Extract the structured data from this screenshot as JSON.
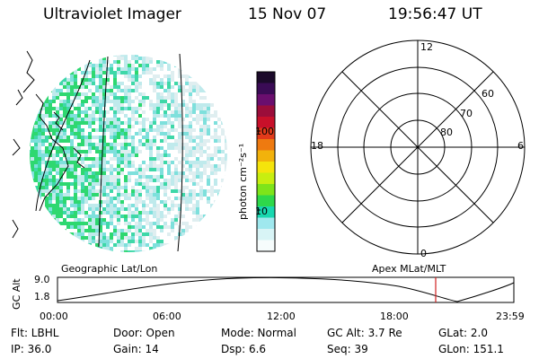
{
  "header": {
    "title": "Ultraviolet Imager",
    "date": "15 Nov 07",
    "time": "19:56:47 UT"
  },
  "colorbar": {
    "unit_label": "photon cm⁻²s⁻¹",
    "ticks": [
      "100",
      "10"
    ],
    "colors": [
      "#1b0a2a",
      "#3a0b55",
      "#6a0e6e",
      "#9b0d3a",
      "#c8102a",
      "#e23a1a",
      "#ee7a10",
      "#f2b20c",
      "#f5e40c",
      "#c8ee10",
      "#7ee41a",
      "#2ed84a",
      "#18d8b0",
      "#9fe8ee",
      "#d8f4f6",
      "#f6fcfc"
    ]
  },
  "polar_plot": {
    "mlt_labels": [
      "12",
      "18",
      "6",
      "0"
    ],
    "lat_labels": [
      "60",
      "70",
      "80"
    ]
  },
  "timeline": {
    "y_axis_label": "GC Alt",
    "y_ticks": [
      "9.0",
      "1.8"
    ],
    "left_title": "Geographic Lat/Lon",
    "right_title": "Apex MLat/MLT",
    "x_ticks": [
      "00:00",
      "06:00",
      "12:00",
      "18:00",
      "23:59"
    ],
    "marker_color": "#d02020"
  },
  "status": {
    "flt": "Flt: LBHL",
    "door": "Door: Open",
    "mode": "Mode: Normal",
    "gc_alt": "GC Alt: 3.7 Re",
    "glat": "GLat:   2.0",
    "ip": "IP: 36.0",
    "gain": "Gain: 14",
    "dsp": "Dsp:     6.6",
    "seq": "Seq: 39",
    "glon": "GLon: 151.1"
  }
}
